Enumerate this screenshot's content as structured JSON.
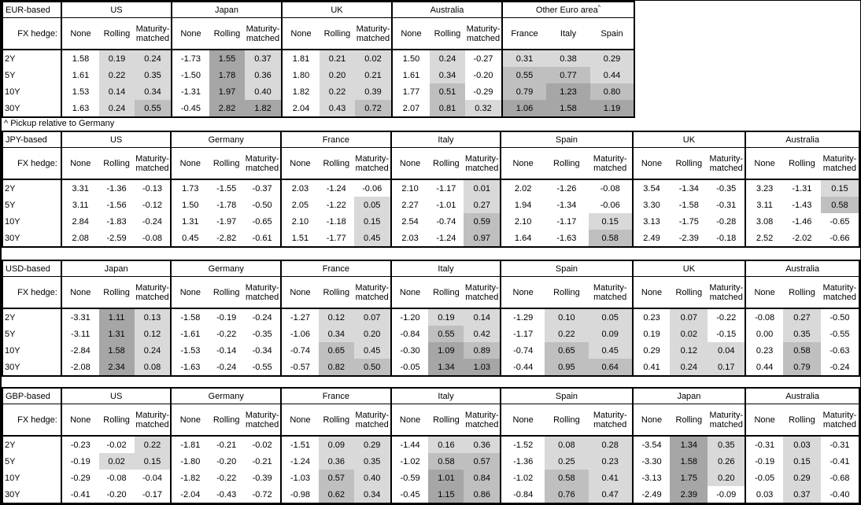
{
  "footnote": "^ Pickup relative to Germany",
  "hedge_label": "FX hedge:",
  "hedge_cols": [
    "None",
    "Rolling",
    "Maturity-matched"
  ],
  "tenors": [
    "2Y",
    "5Y",
    "10Y",
    "30Y"
  ],
  "colors": {
    "shade_light": "#d9d9d9",
    "shade_medium": "#bfbfbf",
    "shade_dark": "#a6a6a6",
    "border": "#000000",
    "background": "#ffffff"
  },
  "shading_rule": {
    "applies_to": "hedged columns (Rolling, Maturity-matched) and all pickup columns; positive values only",
    "light_when_above": 0,
    "medium_when_at_least": 0.5,
    "dark_when_at_least": 1.0
  },
  "tables": [
    {
      "base": "EUR-based",
      "groups": [
        {
          "name": "US",
          "values": [
            [
              "1.58",
              "0.19",
              "0.24"
            ],
            [
              "1.61",
              "0.22",
              "0.35"
            ],
            [
              "1.53",
              "0.14",
              "0.34"
            ],
            [
              "1.63",
              "0.24",
              "0.55"
            ]
          ]
        },
        {
          "name": "Japan",
          "values": [
            [
              "-1.73",
              "1.55",
              "0.37"
            ],
            [
              "-1.50",
              "1.78",
              "0.36"
            ],
            [
              "-1.31",
              "1.97",
              "0.40"
            ],
            [
              "-0.45",
              "2.82",
              "1.82"
            ]
          ]
        },
        {
          "name": "UK",
          "values": [
            [
              "1.81",
              "0.21",
              "0.02"
            ],
            [
              "1.80",
              "0.20",
              "0.21"
            ],
            [
              "1.82",
              "0.22",
              "0.39"
            ],
            [
              "2.04",
              "0.43",
              "0.72"
            ]
          ]
        },
        {
          "name": "Australia",
          "values": [
            [
              "1.50",
              "0.24",
              "-0.27"
            ],
            [
              "1.61",
              "0.34",
              "-0.20"
            ],
            [
              "1.77",
              "0.51",
              "-0.29"
            ],
            [
              "2.07",
              "0.81",
              "0.32"
            ]
          ]
        },
        {
          "name": "Other Euro area",
          "sup": "^",
          "pickup": true,
          "columns": [
            "France",
            "Italy",
            "Spain"
          ],
          "values": [
            [
              "0.31",
              "0.38",
              "0.29"
            ],
            [
              "0.55",
              "0.77",
              "0.44"
            ],
            [
              "0.79",
              "1.23",
              "0.80"
            ],
            [
              "1.06",
              "1.58",
              "1.19"
            ]
          ]
        }
      ]
    },
    {
      "base": "JPY-based",
      "groups": [
        {
          "name": "US",
          "values": [
            [
              "3.31",
              "-1.36",
              "-0.13"
            ],
            [
              "3.11",
              "-1.56",
              "-0.12"
            ],
            [
              "2.84",
              "-1.83",
              "-0.24"
            ],
            [
              "2.08",
              "-2.59",
              "-0.08"
            ]
          ]
        },
        {
          "name": "Germany",
          "values": [
            [
              "1.73",
              "-1.55",
              "-0.37"
            ],
            [
              "1.50",
              "-1.78",
              "-0.50"
            ],
            [
              "1.31",
              "-1.97",
              "-0.65"
            ],
            [
              "0.45",
              "-2.82",
              "-0.61"
            ]
          ]
        },
        {
          "name": "France",
          "values": [
            [
              "2.03",
              "-1.24",
              "-0.06"
            ],
            [
              "2.05",
              "-1.22",
              "0.05"
            ],
            [
              "2.10",
              "-1.18",
              "0.15"
            ],
            [
              "1.51",
              "-1.77",
              "0.45"
            ]
          ]
        },
        {
          "name": "Italy",
          "values": [
            [
              "2.10",
              "-1.17",
              "0.01"
            ],
            [
              "2.27",
              "-1.01",
              "0.27"
            ],
            [
              "2.54",
              "-0.74",
              "0.59"
            ],
            [
              "2.03",
              "-1.24",
              "0.97"
            ]
          ]
        },
        {
          "name": "Spain",
          "values": [
            [
              "2.02",
              "-1.26",
              "-0.08"
            ],
            [
              "1.94",
              "-1.34",
              "-0.06"
            ],
            [
              "2.10",
              "-1.17",
              "0.15"
            ],
            [
              "1.64",
              "-1.63",
              "0.58"
            ]
          ]
        },
        {
          "name": "UK",
          "values": [
            [
              "3.54",
              "-1.34",
              "-0.35"
            ],
            [
              "3.30",
              "-1.58",
              "-0.31"
            ],
            [
              "3.13",
              "-1.75",
              "-0.28"
            ],
            [
              "2.49",
              "-2.39",
              "-0.18"
            ]
          ]
        },
        {
          "name": "Australia",
          "values": [
            [
              "3.23",
              "-1.31",
              "0.15"
            ],
            [
              "3.11",
              "-1.43",
              "0.58"
            ],
            [
              "3.08",
              "-1.46",
              "-0.65"
            ],
            [
              "2.52",
              "-2.02",
              "-0.66"
            ]
          ]
        }
      ]
    },
    {
      "base": "USD-based",
      "groups": [
        {
          "name": "Japan",
          "values": [
            [
              "-3.31",
              "1.11",
              "0.13"
            ],
            [
              "-3.11",
              "1.31",
              "0.12"
            ],
            [
              "-2.84",
              "1.58",
              "0.24"
            ],
            [
              "-2.08",
              "2.34",
              "0.08"
            ]
          ]
        },
        {
          "name": "Germany",
          "values": [
            [
              "-1.58",
              "-0.19",
              "-0.24"
            ],
            [
              "-1.61",
              "-0.22",
              "-0.35"
            ],
            [
              "-1.53",
              "-0.14",
              "-0.34"
            ],
            [
              "-1.63",
              "-0.24",
              "-0.55"
            ]
          ]
        },
        {
          "name": "France",
          "values": [
            [
              "-1.27",
              "0.12",
              "0.07"
            ],
            [
              "-1.06",
              "0.34",
              "0.20"
            ],
            [
              "-0.74",
              "0.65",
              "0.45"
            ],
            [
              "-0.57",
              "0.82",
              "0.50"
            ]
          ]
        },
        {
          "name": "Italy",
          "values": [
            [
              "-1.20",
              "0.19",
              "0.14"
            ],
            [
              "-0.84",
              "0.55",
              "0.42"
            ],
            [
              "-0.30",
              "1.09",
              "0.89"
            ],
            [
              "-0.05",
              "1.34",
              "1.03"
            ]
          ]
        },
        {
          "name": "Spain",
          "values": [
            [
              "-1.29",
              "0.10",
              "0.05"
            ],
            [
              "-1.17",
              "0.22",
              "0.09"
            ],
            [
              "-0.74",
              "0.65",
              "0.45"
            ],
            [
              "-0.44",
              "0.95",
              "0.64"
            ]
          ]
        },
        {
          "name": "UK",
          "values": [
            [
              "0.23",
              "0.07",
              "-0.22"
            ],
            [
              "0.19",
              "0.02",
              "-0.15"
            ],
            [
              "0.29",
              "0.12",
              "0.04"
            ],
            [
              "0.41",
              "0.24",
              "0.17"
            ]
          ]
        },
        {
          "name": "Australia",
          "values": [
            [
              "-0.08",
              "0.27",
              "-0.50"
            ],
            [
              "0.00",
              "0.35",
              "-0.55"
            ],
            [
              "0.23",
              "0.58",
              "-0.63"
            ],
            [
              "0.44",
              "0.79",
              "-0.24"
            ]
          ]
        }
      ]
    },
    {
      "base": "GBP-based",
      "groups": [
        {
          "name": "US",
          "values": [
            [
              "-0.23",
              "-0.02",
              "0.22"
            ],
            [
              "-0.19",
              "0.02",
              "0.15"
            ],
            [
              "-0.29",
              "-0.08",
              "-0.04"
            ],
            [
              "-0.41",
              "-0.20",
              "-0.17"
            ]
          ]
        },
        {
          "name": "Germany",
          "values": [
            [
              "-1.81",
              "-0.21",
              "-0.02"
            ],
            [
              "-1.80",
              "-0.20",
              "-0.21"
            ],
            [
              "-1.82",
              "-0.22",
              "-0.39"
            ],
            [
              "-2.04",
              "-0.43",
              "-0.72"
            ]
          ]
        },
        {
          "name": "France",
          "values": [
            [
              "-1.51",
              "0.09",
              "0.29"
            ],
            [
              "-1.24",
              "0.36",
              "0.35"
            ],
            [
              "-1.03",
              "0.57",
              "0.40"
            ],
            [
              "-0.98",
              "0.62",
              "0.34"
            ]
          ]
        },
        {
          "name": "Italy",
          "values": [
            [
              "-1.44",
              "0.16",
              "0.36"
            ],
            [
              "-1.02",
              "0.58",
              "0.57"
            ],
            [
              "-0.59",
              "1.01",
              "0.84"
            ],
            [
              "-0.45",
              "1.15",
              "0.86"
            ]
          ]
        },
        {
          "name": "Spain",
          "values": [
            [
              "-1.52",
              "0.08",
              "0.28"
            ],
            [
              "-1.36",
              "0.25",
              "0.23"
            ],
            [
              "-1.02",
              "0.58",
              "0.41"
            ],
            [
              "-0.84",
              "0.76",
              "0.47"
            ]
          ]
        },
        {
          "name": "Japan",
          "values": [
            [
              "-3.54",
              "1.34",
              "0.35"
            ],
            [
              "-3.30",
              "1.58",
              "0.26"
            ],
            [
              "-3.13",
              "1.75",
              "0.20"
            ],
            [
              "-2.49",
              "2.39",
              "-0.09"
            ]
          ]
        },
        {
          "name": "Australia",
          "values": [
            [
              "-0.31",
              "0.03",
              "-0.31"
            ],
            [
              "-0.19",
              "0.15",
              "-0.41"
            ],
            [
              "-0.05",
              "0.29",
              "-0.68"
            ],
            [
              "0.03",
              "0.37",
              "-0.40"
            ]
          ]
        }
      ]
    }
  ]
}
